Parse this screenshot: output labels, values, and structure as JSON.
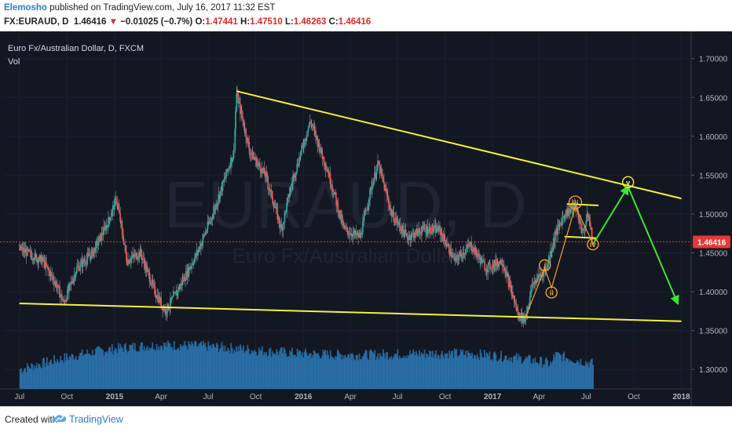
{
  "header": {
    "author": "Elemosho",
    "published": "published on TradingView.com, July 16, 2017 11:32 EST",
    "symbol": "FX:EURAUD, D",
    "last": "1.46416",
    "arrow": "▼",
    "change": "−0.01025 (−0.7%)",
    "o_label": "O:",
    "o_value": "1.47441",
    "h_label": "H:",
    "h_value": "1.47510",
    "l_label": "L:",
    "l_value": "1.46263",
    "c_label": "C:",
    "c_value": "1.46416"
  },
  "legend": {
    "series_title": "Euro Fx/Australian Dollar, D, FXCM",
    "volume_label": "Vol"
  },
  "watermark": {
    "symbol": "EURAUD, D",
    "name": "Euro Fx/Australian Dollar"
  },
  "colors": {
    "background": "#131722",
    "trendline": "#f5f23a",
    "impulse": "#f0a030",
    "projection": "#3ce62f",
    "price_line": "#e53935",
    "volume": "#2d7fbf"
  },
  "chart_data": {
    "type": "candlestick",
    "title": "Euro Fx/Australian Dollar, D, FXCM",
    "ylim": [
      1.275,
      1.735
    ],
    "x_ticks": [
      "Jul",
      "Oct",
      "2015",
      "Apr",
      "Jul",
      "Oct",
      "2016",
      "Apr",
      "Jul",
      "Oct",
      "2017",
      "Apr",
      "Jul",
      "Oct",
      "2018"
    ],
    "y_ticks": [
      "1.70000",
      "1.65000",
      "1.60000",
      "1.55000",
      "1.50000",
      "1.45000",
      "1.40000",
      "1.35000",
      "1.30000"
    ],
    "last_price": 1.46416,
    "last_price_label": "1.46416",
    "price_path": [
      [
        "2014-07-01",
        1.455
      ],
      [
        "2014-08-15",
        1.44
      ],
      [
        "2014-09-10",
        1.41
      ],
      [
        "2014-09-25",
        1.385
      ],
      [
        "2014-10-20",
        1.43
      ],
      [
        "2014-11-20",
        1.45
      ],
      [
        "2014-12-20",
        1.49
      ],
      [
        "2015-01-05",
        1.52
      ],
      [
        "2015-01-25",
        1.44
      ],
      [
        "2015-02-20",
        1.45
      ],
      [
        "2015-03-20",
        1.4
      ],
      [
        "2015-04-10",
        1.375
      ],
      [
        "2015-05-10",
        1.41
      ],
      [
        "2015-06-10",
        1.45
      ],
      [
        "2015-07-10",
        1.5
      ],
      [
        "2015-08-20",
        1.58
      ],
      [
        "2015-08-25",
        1.655
      ],
      [
        "2015-09-20",
        1.58
      ],
      [
        "2015-10-20",
        1.55
      ],
      [
        "2015-11-20",
        1.48
      ],
      [
        "2015-12-10",
        1.54
      ],
      [
        "2016-01-15",
        1.62
      ],
      [
        "2016-02-20",
        1.55
      ],
      [
        "2016-03-20",
        1.48
      ],
      [
        "2016-04-20",
        1.47
      ],
      [
        "2016-05-10",
        1.53
      ],
      [
        "2016-05-25",
        1.565
      ],
      [
        "2016-06-20",
        1.5
      ],
      [
        "2016-07-20",
        1.47
      ],
      [
        "2016-08-20",
        1.48
      ],
      [
        "2016-09-20",
        1.48
      ],
      [
        "2016-10-20",
        1.44
      ],
      [
        "2016-11-20",
        1.46
      ],
      [
        "2016-12-20",
        1.43
      ],
      [
        "2017-01-20",
        1.44
      ],
      [
        "2017-02-20",
        1.37
      ],
      [
        "2017-03-05",
        1.365
      ],
      [
        "2017-03-20",
        1.41
      ],
      [
        "2017-04-15",
        1.43
      ],
      [
        "2017-05-01",
        1.47
      ],
      [
        "2017-05-20",
        1.5
      ],
      [
        "2017-06-10",
        1.51
      ],
      [
        "2017-06-25",
        1.475
      ],
      [
        "2017-07-05",
        1.5
      ],
      [
        "2017-07-14",
        1.46416
      ]
    ],
    "annotations": [
      {
        "type": "trendline",
        "name": "upper-trendline",
        "from": [
          "2015-08-25",
          1.658
        ],
        "to": [
          "2018-01-01",
          1.52
        ]
      },
      {
        "type": "trendline",
        "name": "lower-trendline",
        "from": [
          "2014-07-01",
          1.385
        ],
        "to": [
          "2018-01-01",
          1.362
        ]
      },
      {
        "type": "hline",
        "name": "wave-iii-top",
        "from": [
          "2017-05-25",
          1.513
        ],
        "to": [
          "2017-07-25",
          1.511
        ]
      },
      {
        "type": "hline",
        "name": "wave-iv-base",
        "from": [
          "2017-05-20",
          1.471
        ],
        "to": [
          "2017-07-20",
          1.469
        ]
      },
      {
        "type": "wave-label",
        "label": "i",
        "at": [
          "2017-04-12",
          1.434
        ]
      },
      {
        "type": "wave-label",
        "label": "ii",
        "at": [
          "2017-04-25",
          1.399
        ]
      },
      {
        "type": "wave-label",
        "label": "iii",
        "at": [
          "2017-06-10",
          1.515
        ]
      },
      {
        "type": "wave-label",
        "label": "iv",
        "at": [
          "2017-07-14",
          1.461
        ]
      },
      {
        "type": "wave-label",
        "label": "v",
        "at": [
          "2017-09-20",
          1.541
        ]
      },
      {
        "type": "projection",
        "name": "projected-up-leg",
        "from": [
          "2017-07-14",
          1.461
        ],
        "to": [
          "2017-09-20",
          1.535
        ]
      },
      {
        "type": "projection",
        "name": "projected-down-leg",
        "from": [
          "2017-09-20",
          1.535
        ],
        "to": [
          "2017-12-25",
          1.385
        ]
      }
    ]
  },
  "footer": {
    "created_with": "Created with",
    "brand": "TradingView"
  }
}
